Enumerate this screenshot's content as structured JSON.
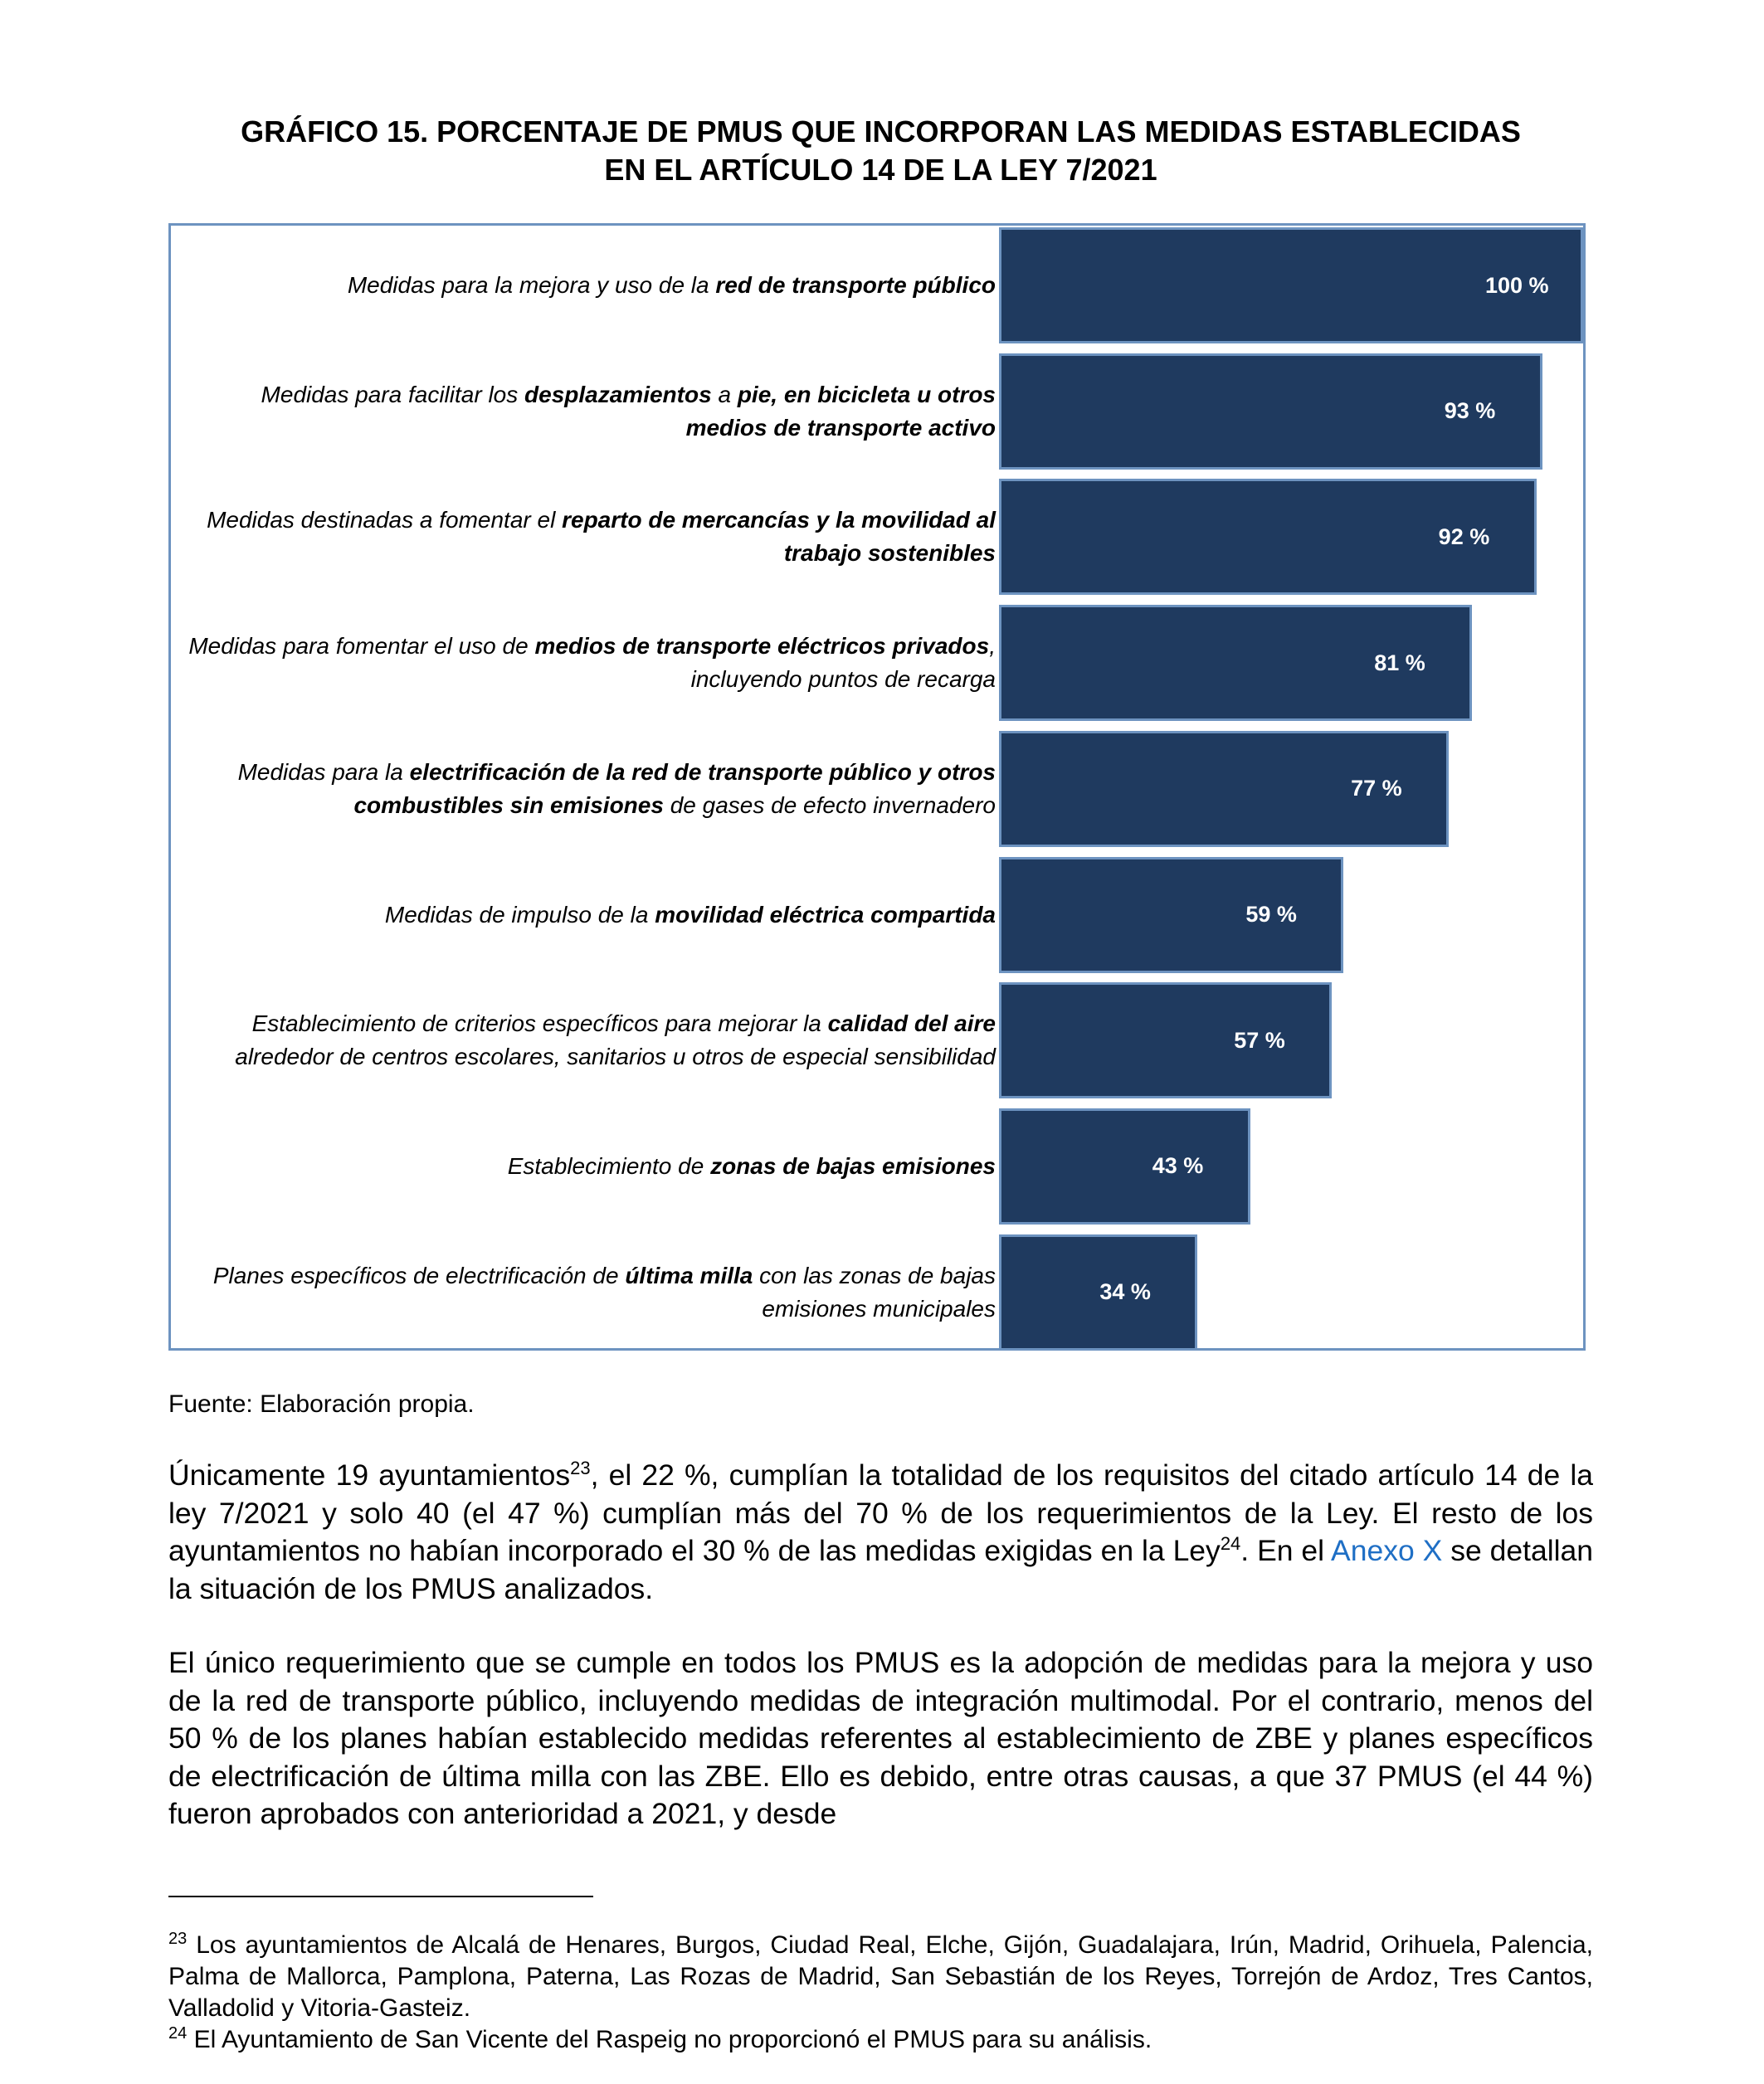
{
  "title": {
    "line1": "GRÁFICO 15. PORCENTAJE DE PMUS QUE INCORPORAN LAS MEDIDAS ESTABLECIDAS",
    "line2": "EN EL ARTÍCULO 14 DE LA LEY 7/2021"
  },
  "chart_data": {
    "type": "bar",
    "orientation": "horizontal",
    "title": "GRÁFICO 15. PORCENTAJE DE PMUS QUE INCORPORAN LAS MEDIDAS ESTABLECIDAS EN EL ARTÍCULO 14 DE LA LEY 7/2021",
    "xlim": [
      0,
      100
    ],
    "bar_color": "#1f3a5f",
    "border_color": "#6d93c0",
    "categories": [
      [
        {
          "t": "Medidas para la mejora y uso de la ",
          "b": false
        },
        {
          "t": "red de transporte público",
          "b": true
        }
      ],
      [
        {
          "t": "Medidas para facilitar los ",
          "b": false
        },
        {
          "t": "desplazamientos",
          "b": true
        },
        {
          "t": " a ",
          "b": false
        },
        {
          "t": "pie, en bicicleta u otros medios de transporte activo",
          "b": true
        }
      ],
      [
        {
          "t": "Medidas destinadas a fomentar el ",
          "b": false
        },
        {
          "t": "reparto de mercancías y la movilidad al trabajo sostenibles",
          "b": true
        }
      ],
      [
        {
          "t": "Medidas para fomentar el uso de ",
          "b": false
        },
        {
          "t": "medios de transporte eléctricos privados",
          "b": true
        },
        {
          "t": ", incluyendo puntos de recarga",
          "b": false
        }
      ],
      [
        {
          "t": "Medidas para la ",
          "b": false
        },
        {
          "t": "electrificación de la red de transporte público y otros combustibles sin emisiones",
          "b": true
        },
        {
          "t": " de gases de efecto invernadero",
          "b": false
        }
      ],
      [
        {
          "t": "Medidas de impulso de la ",
          "b": false
        },
        {
          "t": "movilidad eléctrica compartida",
          "b": true
        }
      ],
      [
        {
          "t": "Establecimiento de criterios específicos para mejorar la ",
          "b": false
        },
        {
          "t": "calidad del aire",
          "b": true
        },
        {
          "t": " alrededor de centros escolares, sanitarios u otros de especial sensibilidad",
          "b": false
        }
      ],
      [
        {
          "t": "Establecimiento de ",
          "b": false
        },
        {
          "t": "zonas de bajas emisiones",
          "b": true
        }
      ],
      [
        {
          "t": "Planes específicos de electrificación de ",
          "b": false
        },
        {
          "t": "última milla",
          "b": true
        },
        {
          "t": " con las zonas de bajas emisiones municipales",
          "b": false
        }
      ]
    ],
    "values": [
      100,
      93,
      92,
      81,
      77,
      59,
      57,
      43,
      34
    ],
    "data_labels": [
      "100 %",
      "93 %",
      "92 %",
      "81 %",
      "77 %",
      "59 %",
      "57 %",
      "43 %",
      "34 %"
    ]
  },
  "source": "Fuente: Elaboración propia.",
  "paragraph1": {
    "a": "Únicamente 19 ayuntamientos",
    "sup1": "23",
    "b": ", el 22 %, cumplían la totalidad de los requisitos del citado artículo 14 de la ley 7/2021 y solo 40 (el 47 %) cumplían más del 70 % de los requerimientos de la Ley. El resto de los ayuntamientos no habían incorporado el 30 % de las medidas exigidas en la Ley",
    "sup2": "24",
    "c": ". En el ",
    "link": "Anexo X",
    "d": " se detallan la situación de los PMUS analizados."
  },
  "paragraph2": "El único requerimiento que se cumple en todos los PMUS es la adopción de medidas para la mejora y uso de la red de transporte público, incluyendo medidas de integración multimodal. Por el contrario, menos del 50 % de los planes habían establecido medidas referentes al establecimiento de ZBE y planes específicos de electrificación de última milla con las ZBE. Ello es debido, entre otras causas, a que 37 PMUS (el 44 %) fueron aprobados con anterioridad a 2021, y desde",
  "footnotes": [
    {
      "num": "23",
      "text": " Los ayuntamientos de Alcalá de Henares, Burgos, Ciudad Real, Elche, Gijón, Guadalajara, Irún,  Madrid, Orihuela, Palencia, Palma de Mallorca, Pamplona, Paterna, Las Rozas de Madrid, San Sebastián de los Reyes, Torrejón de Ardoz, Tres Cantos, Valladolid y Vitoria-Gasteiz."
    },
    {
      "num": "24",
      "text": " El Ayuntamiento de San Vicente del Raspeig no proporcionó el PMUS para su análisis."
    }
  ]
}
